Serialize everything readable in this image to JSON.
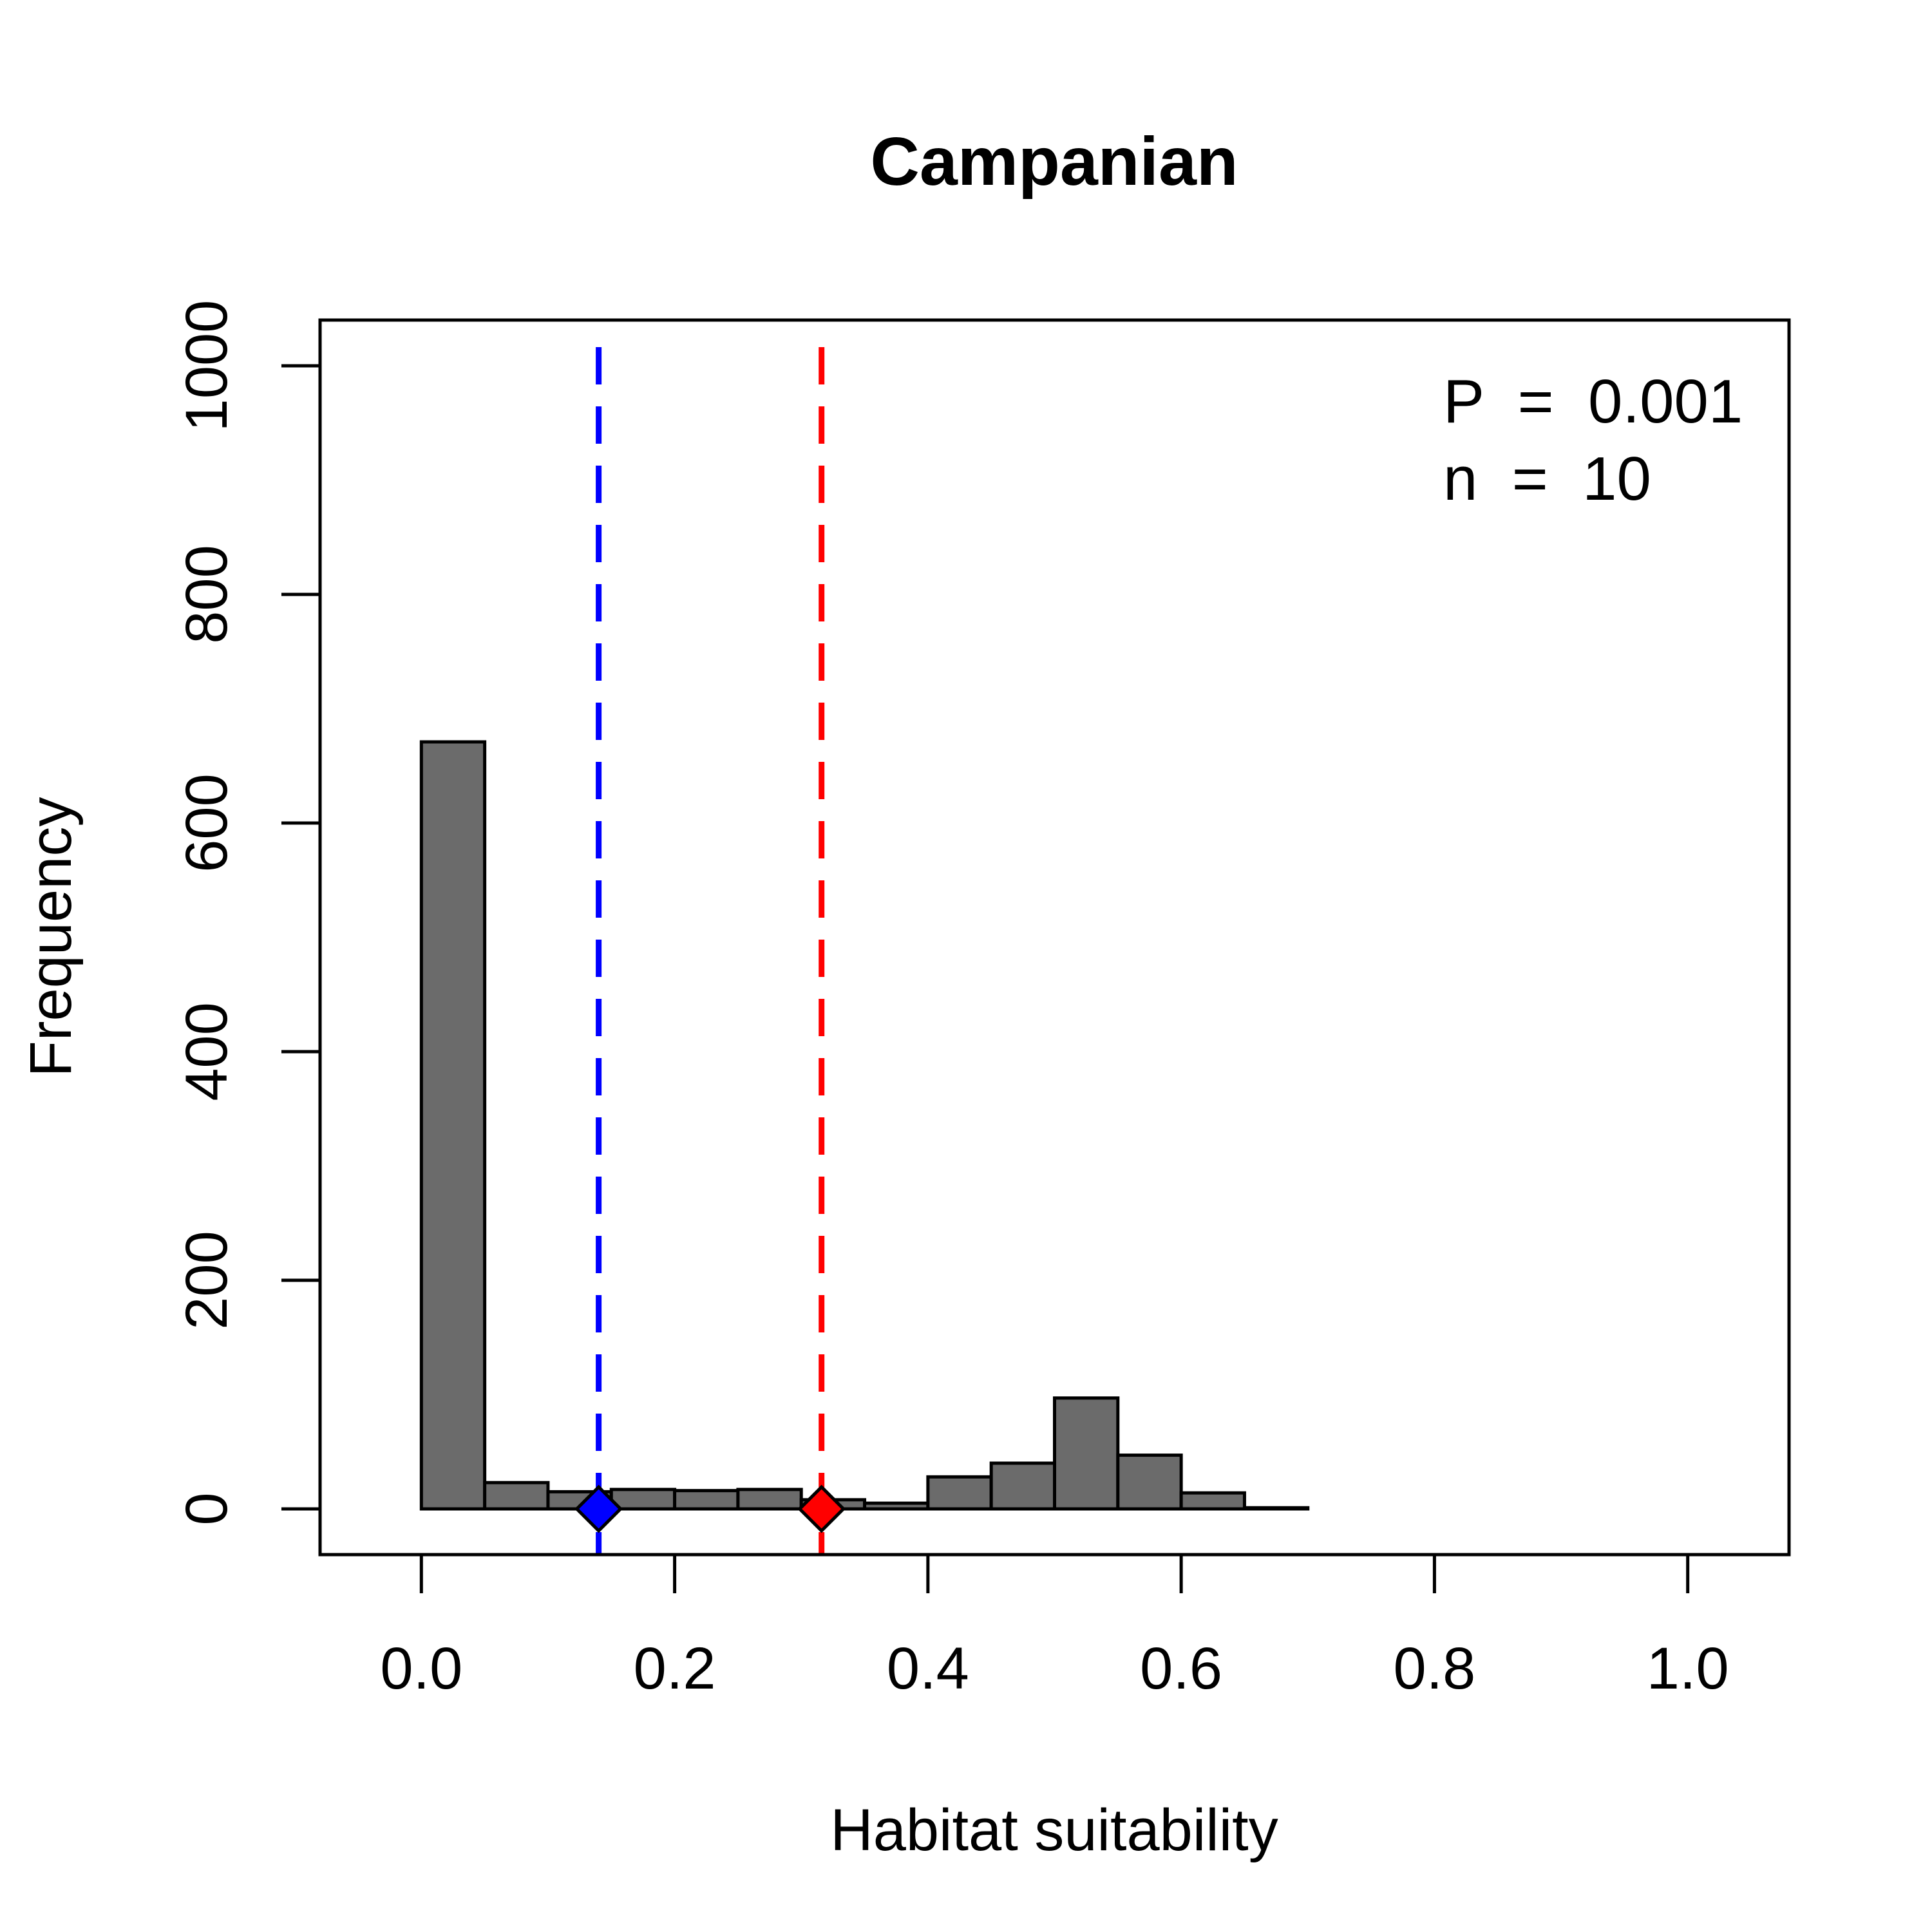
{
  "chart_data": {
    "type": "bar",
    "title": "Campanian",
    "xlabel": "Habitat suitability",
    "ylabel": "Frequency",
    "xlim": [
      -0.08,
      1.08
    ],
    "ylim": [
      -40,
      1040
    ],
    "x_ticks": [
      0.0,
      0.2,
      0.4,
      0.6,
      0.8,
      1.0
    ],
    "x_tick_labels": [
      "0.0",
      "0.2",
      "0.4",
      "0.6",
      "0.8",
      "1.0"
    ],
    "y_ticks": [
      0,
      200,
      400,
      600,
      800,
      1000
    ],
    "y_tick_labels": [
      "0",
      "200",
      "400",
      "600",
      "800",
      "1000"
    ],
    "bin_width": 0.05,
    "bins": [
      {
        "start": 0.0,
        "count": 671
      },
      {
        "start": 0.05,
        "count": 23
      },
      {
        "start": 0.1,
        "count": 15
      },
      {
        "start": 0.15,
        "count": 17
      },
      {
        "start": 0.2,
        "count": 16
      },
      {
        "start": 0.25,
        "count": 17
      },
      {
        "start": 0.3,
        "count": 8
      },
      {
        "start": 0.35,
        "count": 5
      },
      {
        "start": 0.4,
        "count": 28
      },
      {
        "start": 0.45,
        "count": 40
      },
      {
        "start": 0.5,
        "count": 97
      },
      {
        "start": 0.55,
        "count": 47
      },
      {
        "start": 0.6,
        "count": 14
      },
      {
        "start": 0.65,
        "count": 1
      }
    ],
    "bar_color": "#6b6b6b",
    "reference_lines": [
      {
        "x": 0.14,
        "color": "#0000ff"
      },
      {
        "x": 0.316,
        "color": "#ff0000"
      }
    ],
    "annotations": [
      "P  =  0.001",
      "n  =  10"
    ]
  }
}
